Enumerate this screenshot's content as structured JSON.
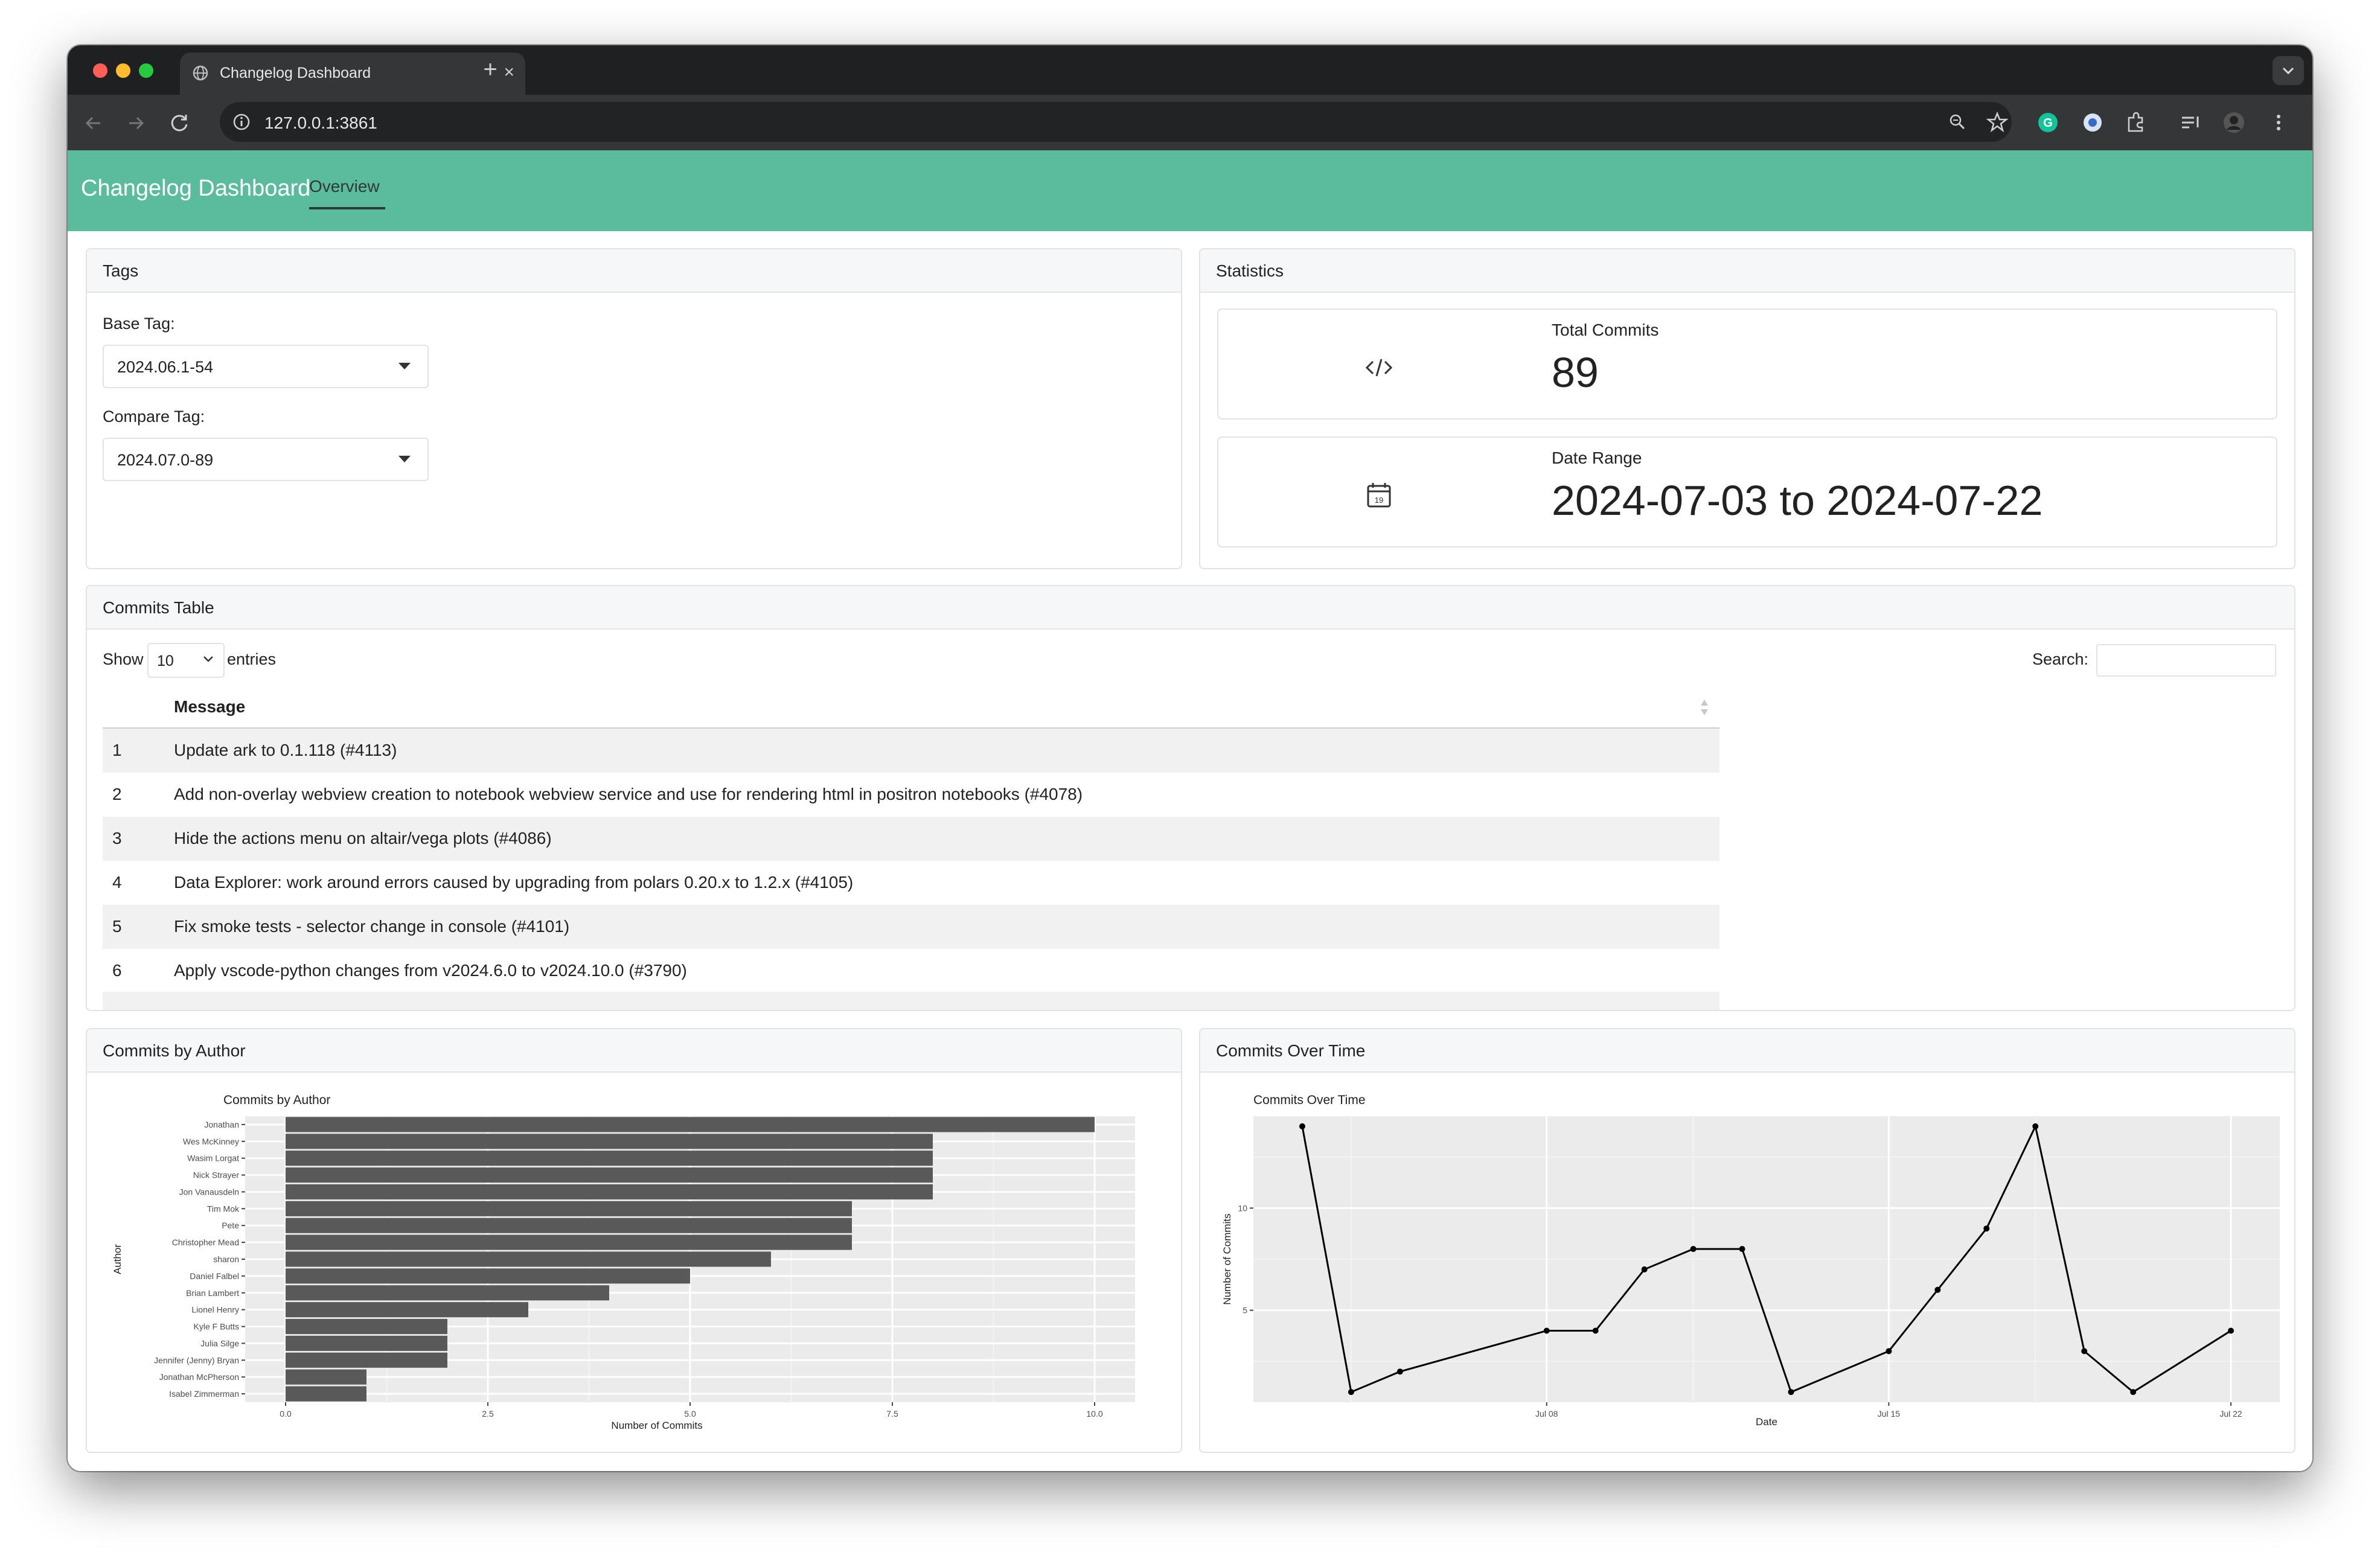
{
  "browser": {
    "tab_title": "Changelog Dashboard",
    "tab_close": "×",
    "new_tab": "+",
    "url": "127.0.0.1:3861"
  },
  "navbar": {
    "brand": "Changelog Dashboard",
    "tabs": [
      "Overview"
    ],
    "active_tab": "Overview"
  },
  "tags": {
    "title": "Tags",
    "base_label": "Base Tag:",
    "base_value": "2024.06.1-54",
    "compare_label": "Compare Tag:",
    "compare_value": "2024.07.0-89"
  },
  "statistics": {
    "title": "Statistics",
    "total_commits_label": "Total Commits",
    "total_commits_value": "89",
    "date_range_label": "Date Range",
    "date_range_value": "2024-07-03 to 2024-07-22",
    "calendar_icon_day": "19"
  },
  "commits_table": {
    "title": "Commits Table",
    "show_label": "Show",
    "entries_value": "10",
    "entries_label": "entries",
    "search_label": "Search:",
    "search_value": "",
    "column_message": "Message",
    "rows": [
      {
        "index": "1",
        "message": "Update ark to 0.1.118 (#4113)"
      },
      {
        "index": "2",
        "message": "Add non-overlay webview creation to notebook webview service and use for rendering html in positron notebooks (#4078)"
      },
      {
        "index": "3",
        "message": "Hide the actions menu on altair/vega plots (#4086)"
      },
      {
        "index": "4",
        "message": "Data Explorer: work around errors caused by upgrading from polars 0.20.x to 1.2.x (#4105)"
      },
      {
        "index": "5",
        "message": "Fix smoke tests - selector change in console (#4101)"
      },
      {
        "index": "6",
        "message": "Apply vscode-python changes from v2024.6.0 to v2024.10.0 (#3790)"
      }
    ]
  },
  "chart_data": [
    {
      "panel_title": "Commits by Author",
      "type": "bar",
      "orientation": "horizontal",
      "title": "Commits by Author",
      "xlabel": "Number of Commits",
      "ylabel": "Author",
      "xlim": [
        0,
        10.5
      ],
      "xticks": [
        "0.0",
        "2.5",
        "5.0",
        "7.5",
        "10.0"
      ],
      "grid": true,
      "bar_color": "#595959",
      "categories": [
        "Jonathan",
        "Wes McKinney",
        "Wasim Lorgat",
        "Nick Strayer",
        "Jon Vanausdeln",
        "Tim Mok",
        "Pete",
        "Christopher Mead",
        "sharon",
        "Daniel Falbel",
        "Brian Lambert",
        "Lionel Henry",
        "Kyle F Butts",
        "Julia Silge",
        "Jennifer (Jenny) Bryan",
        "Jonathan McPherson",
        "Isabel Zimmerman"
      ],
      "values": [
        10,
        8,
        8,
        8,
        8,
        7,
        7,
        7,
        6,
        5,
        4,
        3,
        2,
        2,
        2,
        1,
        1
      ]
    },
    {
      "panel_title": "Commits Over Time",
      "type": "line",
      "title": "Commits Over Time",
      "xlabel": "Date",
      "ylabel": "Number of Commits",
      "xlim": [
        "2024-07-02",
        "2024-07-23"
      ],
      "ylim": [
        0.5,
        14.5
      ],
      "xticks": [
        "Jul 08",
        "Jul 15",
        "Jul 22"
      ],
      "yticks": [
        "5",
        "10"
      ],
      "grid": true,
      "line_color": "#000000",
      "x": [
        "2024-07-03",
        "2024-07-04",
        "2024-07-05",
        "2024-07-08",
        "2024-07-09",
        "2024-07-10",
        "2024-07-11",
        "2024-07-12",
        "2024-07-13",
        "2024-07-15",
        "2024-07-16",
        "2024-07-17",
        "2024-07-18",
        "2024-07-19",
        "2024-07-20",
        "2024-07-22"
      ],
      "y": [
        14,
        1,
        2,
        4,
        4,
        7,
        8,
        8,
        1,
        3,
        6,
        9,
        14,
        3,
        1,
        4
      ]
    }
  ]
}
